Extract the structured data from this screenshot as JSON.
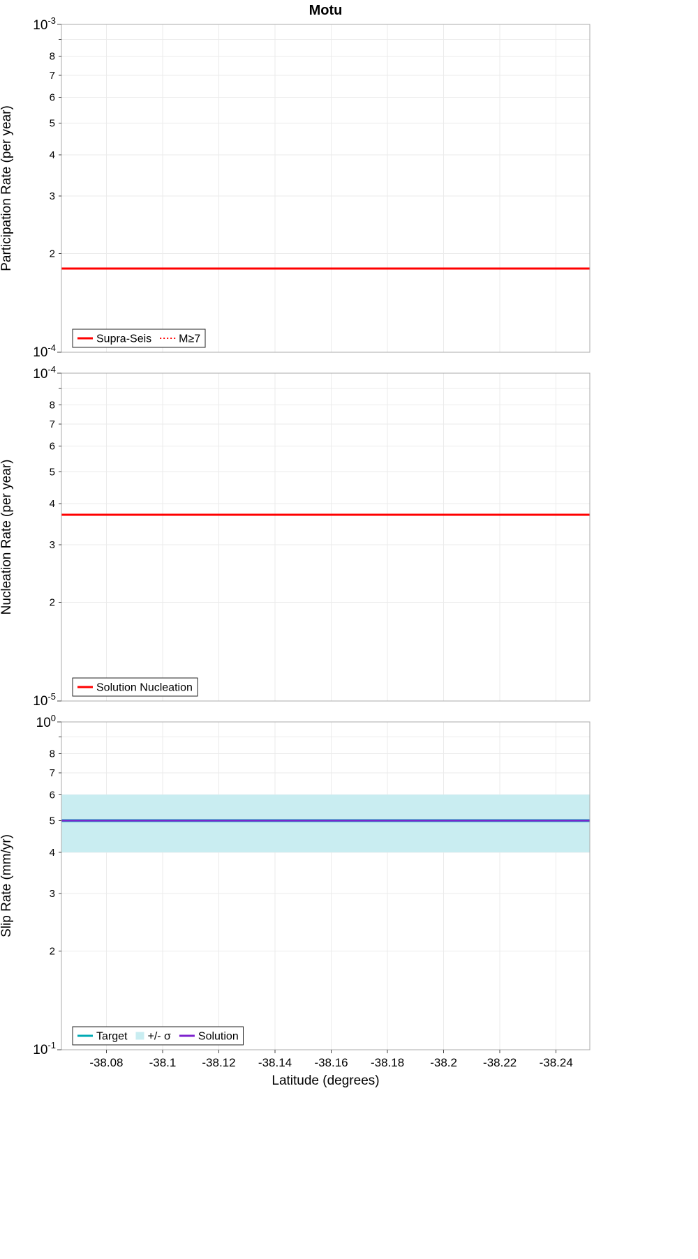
{
  "title": "Motu",
  "xlabel": "Latitude (degrees)",
  "log_base": "10",
  "colors": {
    "red": "#ff0000",
    "teal": "#00aab4",
    "band": "#c9edf1",
    "purple": "#7e22ce",
    "grid": "#ebebeb",
    "frame": "#ababab",
    "tick": "#444444",
    "text": "#000000",
    "legend_border": "#222222"
  },
  "x_axis": {
    "min": -38.064,
    "max": -38.252,
    "tick_labels": [
      "-38.08",
      "-38.1",
      "-38.12",
      "-38.14",
      "-38.16",
      "-38.18",
      "-38.2",
      "-38.22",
      "-38.24"
    ]
  },
  "chart_data": [
    {
      "name": "participation-rate",
      "type": "line",
      "yscale": "log",
      "ylabel": "Participation Rate (per year)",
      "ylim": [
        0.0001,
        0.001
      ],
      "decade_exponent_top": "-3",
      "decade_exponent_bottom": "-4",
      "minor_tick_labels": [
        "2",
        "3",
        "4",
        "5",
        "6",
        "7",
        "8"
      ],
      "bands": [],
      "series": [
        {
          "name": "Supra-Seis",
          "value": 0.00018,
          "color": "red",
          "dash": "solid",
          "width": 3
        },
        {
          "name": "M≥7",
          "value": 0.00018,
          "color": "red",
          "dash": "dotted",
          "width": 2
        }
      ],
      "legend": [
        {
          "label": "Supra-Seis",
          "swatch": "line-solid",
          "color": "red"
        },
        {
          "label": "M≥7",
          "swatch": "line-dotted",
          "color": "red"
        }
      ]
    },
    {
      "name": "nucleation-rate",
      "type": "line",
      "yscale": "log",
      "ylabel": "Nucleation Rate (per year)",
      "ylim": [
        1e-05,
        0.0001
      ],
      "decade_exponent_top": "-4",
      "decade_exponent_bottom": "-5",
      "minor_tick_labels": [
        "2",
        "3",
        "4",
        "5",
        "6",
        "7",
        "8"
      ],
      "bands": [],
      "series": [
        {
          "name": "Solution Nucleation",
          "value": 3.7e-05,
          "color": "red",
          "dash": "solid",
          "width": 3
        }
      ],
      "legend": [
        {
          "label": "Solution Nucleation",
          "swatch": "line-solid",
          "color": "red"
        }
      ]
    },
    {
      "name": "slip-rate",
      "type": "line",
      "yscale": "log",
      "ylabel": "Slip Rate (mm/yr)",
      "ylim": [
        0.1,
        1.0
      ],
      "decade_exponent_top": "0",
      "decade_exponent_bottom": "-1",
      "minor_tick_labels": [
        "2",
        "3",
        "4",
        "5",
        "6",
        "7",
        "8"
      ],
      "bands": [
        {
          "name": "+/- σ",
          "y0": 0.4,
          "y1": 0.6,
          "color": "band"
        }
      ],
      "series": [
        {
          "name": "Target",
          "value": 0.5,
          "color": "teal",
          "dash": "solid",
          "width": 4
        },
        {
          "name": "Solution",
          "value": 0.5,
          "color": "purple",
          "dash": "solid",
          "width": 2.5
        }
      ],
      "legend": [
        {
          "label": "Target",
          "swatch": "line-solid",
          "color": "teal"
        },
        {
          "label": "+/- σ",
          "swatch": "patch",
          "color": "band"
        },
        {
          "label": "Solution",
          "swatch": "line-solid",
          "color": "purple"
        }
      ]
    }
  ]
}
